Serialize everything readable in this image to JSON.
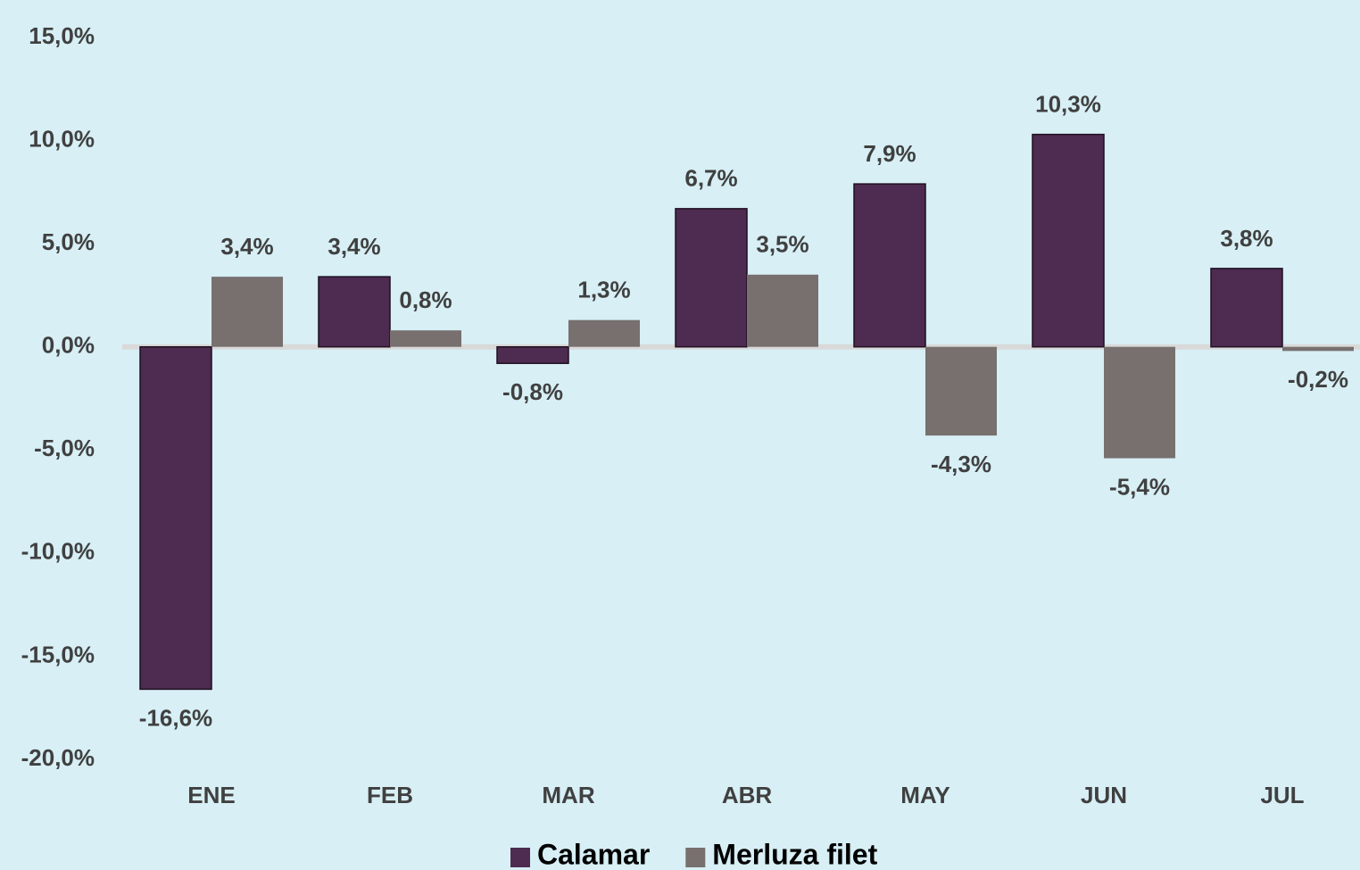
{
  "chart_data": {
    "type": "bar",
    "categories": [
      "ENE",
      "FEB",
      "MAR",
      "ABR",
      "MAY",
      "JUN",
      "JUL"
    ],
    "series": [
      {
        "name": "Calamar",
        "color": "#4e2b50",
        "values": [
          -16.6,
          3.4,
          -0.8,
          6.7,
          7.9,
          10.3,
          3.8
        ],
        "value_labels": [
          "-16,6%",
          "3,4%",
          "-0,8%",
          "6,7%",
          "7,9%",
          "10,3%",
          "3,8%"
        ]
      },
      {
        "name": "Merluza filet",
        "color": "#77706f",
        "values": [
          3.4,
          0.8,
          1.3,
          3.5,
          -4.3,
          -5.4,
          -0.2
        ],
        "value_labels": [
          "3,4%",
          "0,8%",
          "1,3%",
          "3,5%",
          "-4,3%",
          "-5,4%",
          "-0,2%"
        ]
      }
    ],
    "ylim": [
      -20,
      15
    ],
    "yticks": [
      {
        "value": -20,
        "label": "-20,0%"
      },
      {
        "value": -15,
        "label": "-15,0%"
      },
      {
        "value": -10,
        "label": "-10,0%"
      },
      {
        "value": -5,
        "label": "-5,0%"
      },
      {
        "value": 0,
        "label": "0,0%"
      },
      {
        "value": 5,
        "label": "5,0%"
      },
      {
        "value": 10,
        "label": "10,0%"
      },
      {
        "value": 15,
        "label": "15,0%"
      }
    ],
    "grid": false,
    "legend": "bottom"
  }
}
